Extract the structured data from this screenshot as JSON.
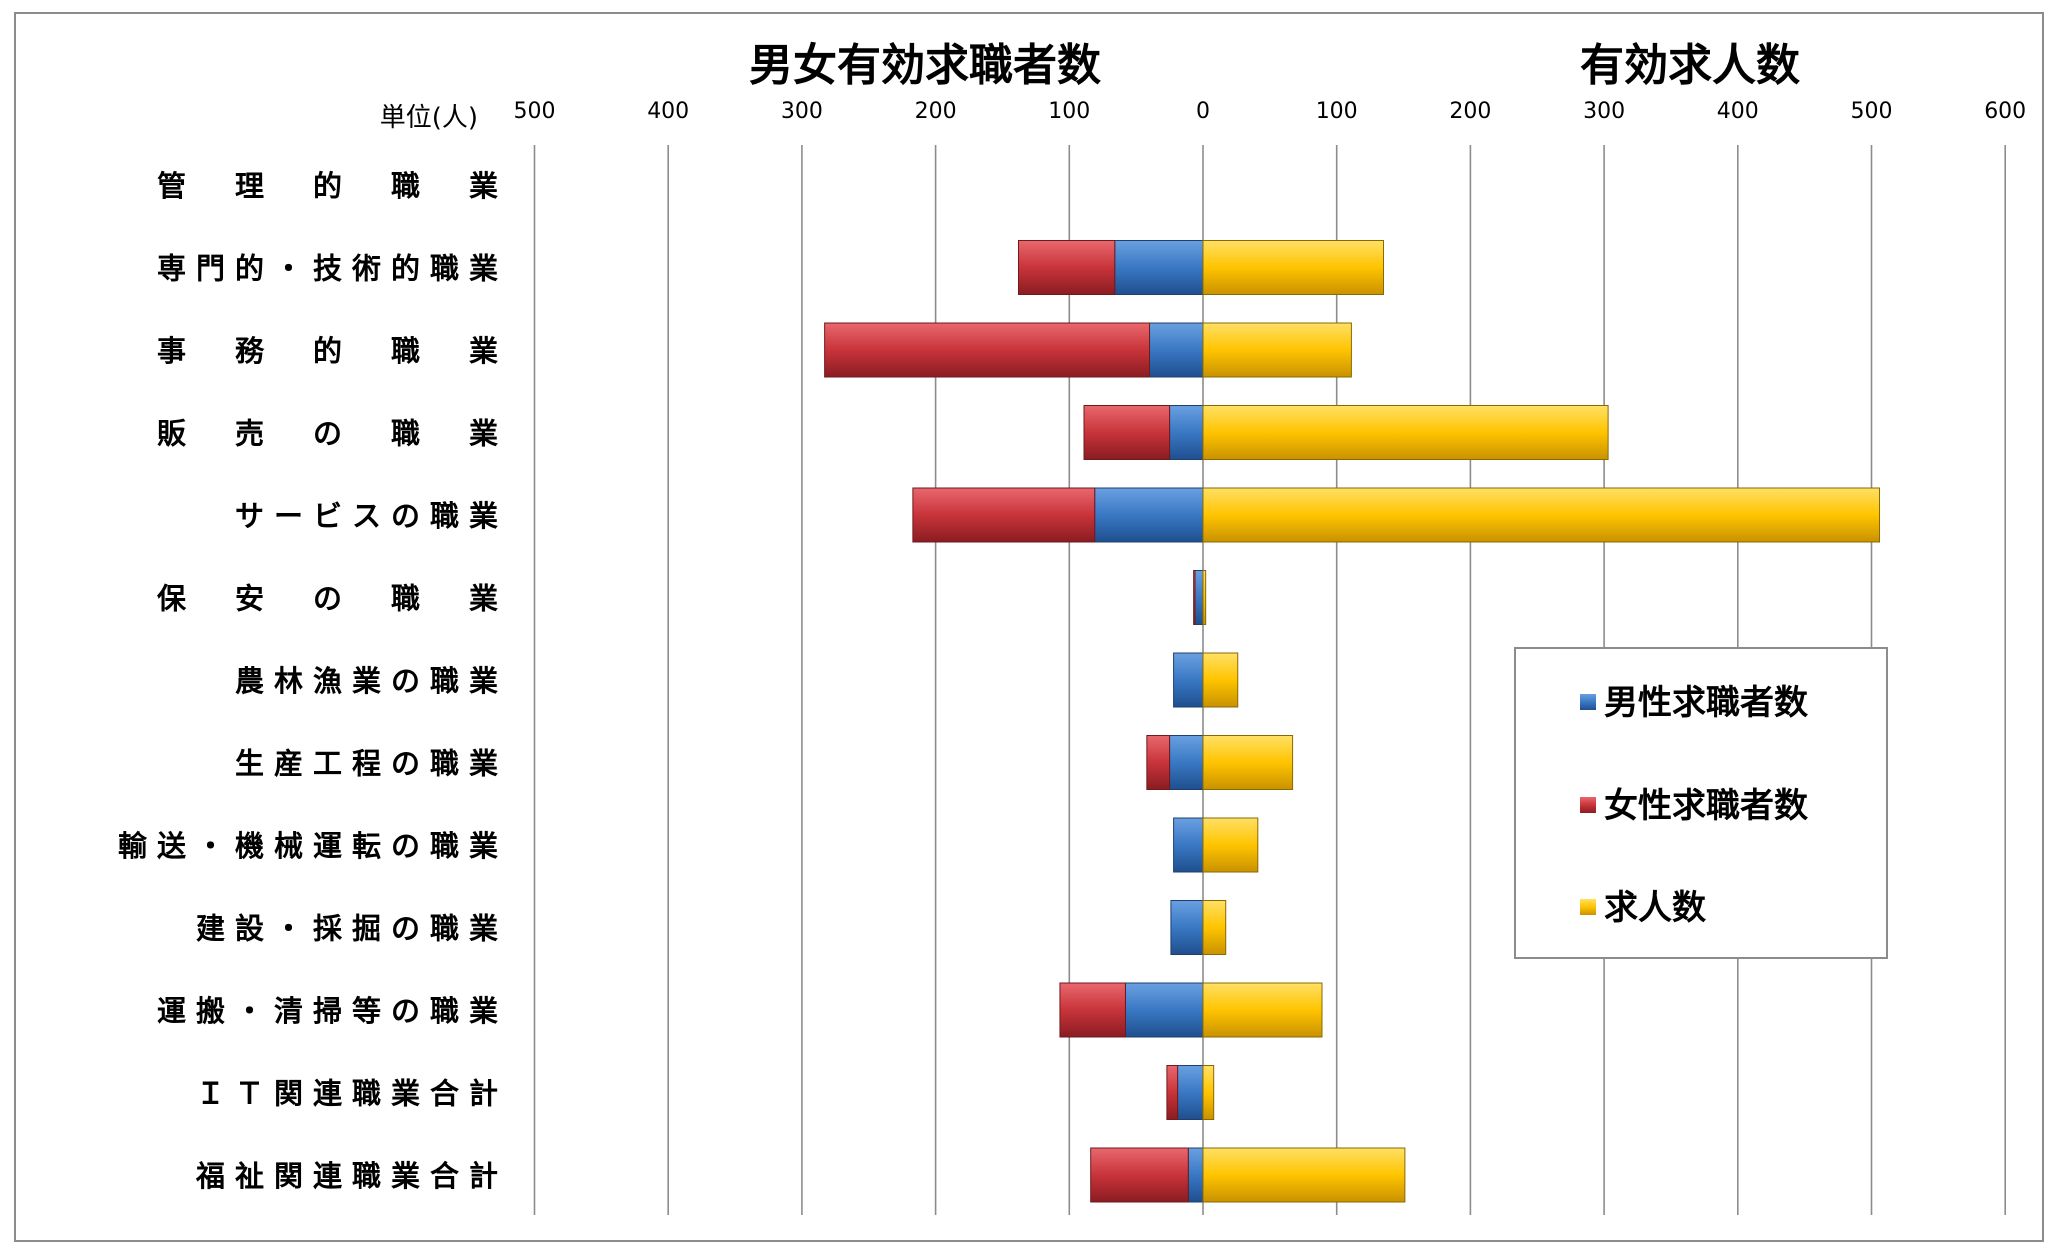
{
  "chart_data": {
    "type": "bar",
    "orientation": "horizontal-diverging",
    "title_left": "男女有効求職者数",
    "title_right": "有効求人数",
    "unit_label": "単位(人)",
    "categories": [
      "管　理　的　職　業",
      "専門的・技術的職業",
      "事　務　的　職　業",
      "販　売　の　職　業",
      "サービスの職業",
      "保　安　の　職　業",
      "農林漁業の職業",
      "生産工程の職業",
      "輸送・機械運転の職業",
      "建設・採掘の職業",
      "運搬・清掃等の職業",
      "ＩＴ関連職業合計",
      "福祉関連職業合計"
    ],
    "series": [
      {
        "name": "男性求職者数",
        "color": "#3a78c4",
        "side": "left",
        "values": [
          0,
          66,
          40,
          25,
          81,
          6,
          22,
          25,
          22,
          24,
          58,
          19,
          11
        ]
      },
      {
        "name": "女性求職者数",
        "color": "#c8343a",
        "side": "left",
        "values": [
          0,
          72,
          243,
          64,
          136,
          1,
          0,
          17,
          0,
          0,
          49,
          8,
          73
        ]
      },
      {
        "name": "求人数",
        "color": "#ffc400",
        "side": "right",
        "values": [
          0,
          135,
          111,
          303,
          506,
          2,
          26,
          67,
          41,
          17,
          89,
          8,
          151
        ]
      }
    ],
    "x_left_ticks": [
      "500",
      "400",
      "300",
      "200",
      "100",
      "0"
    ],
    "x_right_ticks": [
      "100",
      "200",
      "300",
      "400",
      "500",
      "600"
    ],
    "xlim_left": [
      0,
      500
    ],
    "xlim_right": [
      0,
      600
    ],
    "grid": true,
    "legend_position": "right"
  }
}
